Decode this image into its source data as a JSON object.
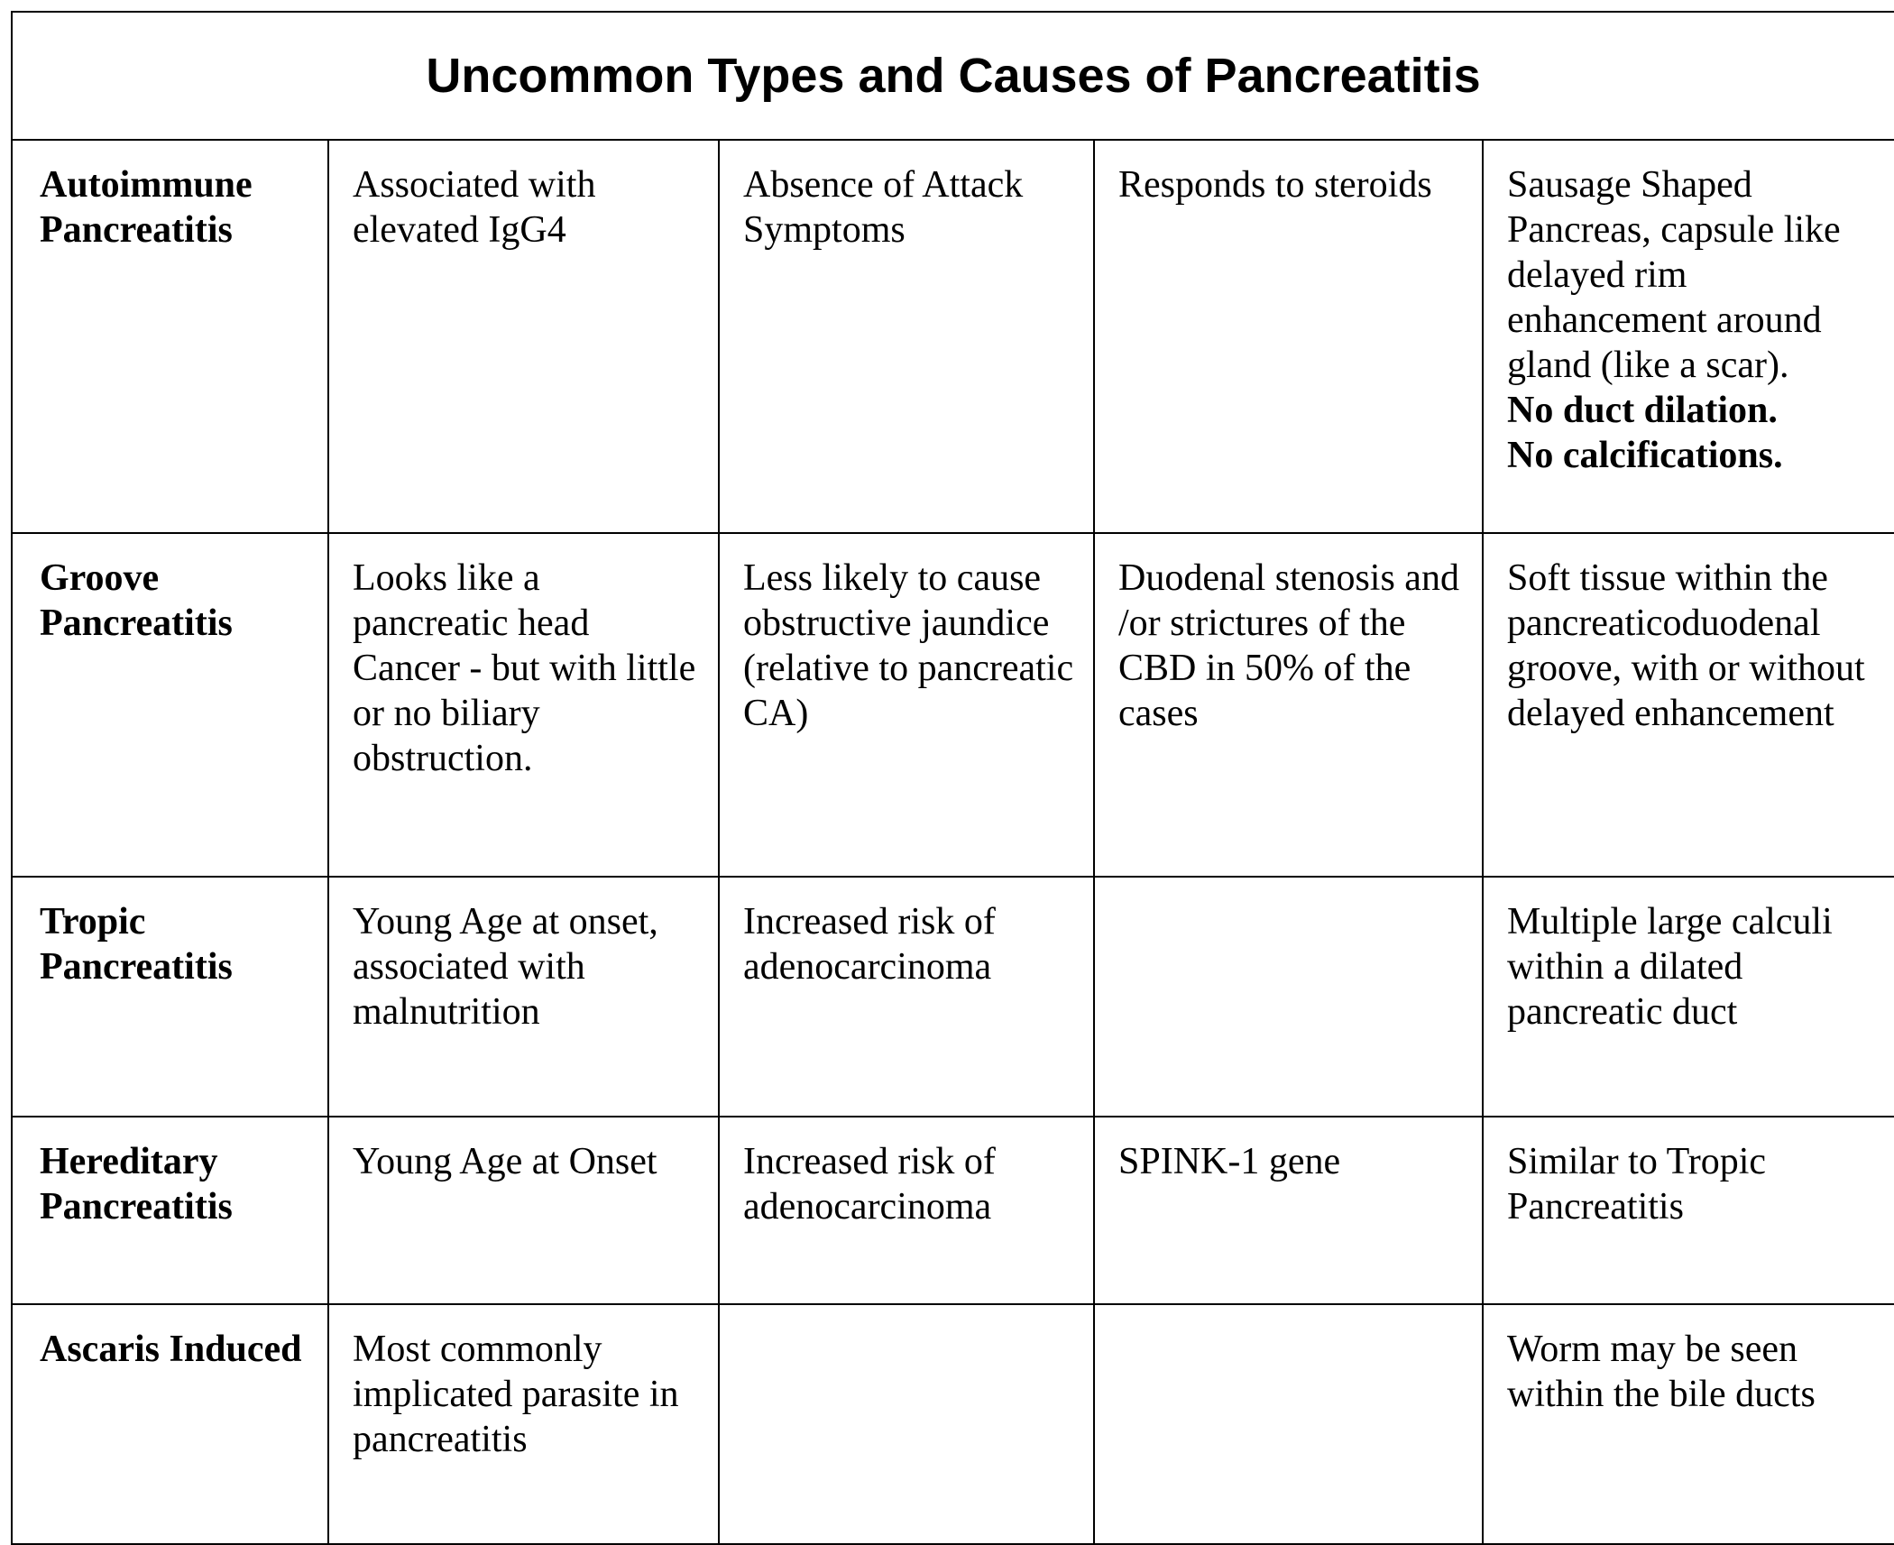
{
  "title": "Uncommon Types and Causes of Pancreatitis",
  "rows": [
    {
      "name": "Autoimmune Pancreatitis",
      "c2": "Associated with elevated IgG4",
      "c3": "Absence of Attack Symptoms",
      "c4": "Responds to steroids",
      "c5": "Sausage Shaped Pancreas, capsule like delayed rim enhancement around gland (like a scar).",
      "c5_bold1": "No duct dilation.",
      "c5_bold2": "No calcifications."
    },
    {
      "name": "Groove Pancreatitis",
      "c2": "Looks like a pancreatic head Cancer - but with little or no biliary obstruction.",
      "c3": "Less likely to cause obstructive jaundice (relative to pancreatic CA)",
      "c4": "Duodenal stenosis and /or strictures of the CBD in 50% of the cases",
      "c5": "Soft tissue within the pancreaticoduodenal groove, with or without delayed enhancement"
    },
    {
      "name": "Tropic Pancreatitis",
      "c2": "Young Age at onset, associated with malnutrition",
      "c3": "Increased risk of adenocarcinoma",
      "c4": "",
      "c5": "Multiple large calculi within a dilated pancreatic duct"
    },
    {
      "name": "Hereditary Pancreatitis",
      "c2": "Young Age at Onset",
      "c3": "Increased risk of adenocarcinoma",
      "c4": "SPINK-1 gene",
      "c5": "Similar to Tropic Pancreatitis"
    },
    {
      "name": "Ascaris Induced",
      "c2": "Most commonly implicated parasite in pancreatitis",
      "c3": "",
      "c4": "",
      "c5": "Worm may be seen within the bile ducts"
    }
  ]
}
